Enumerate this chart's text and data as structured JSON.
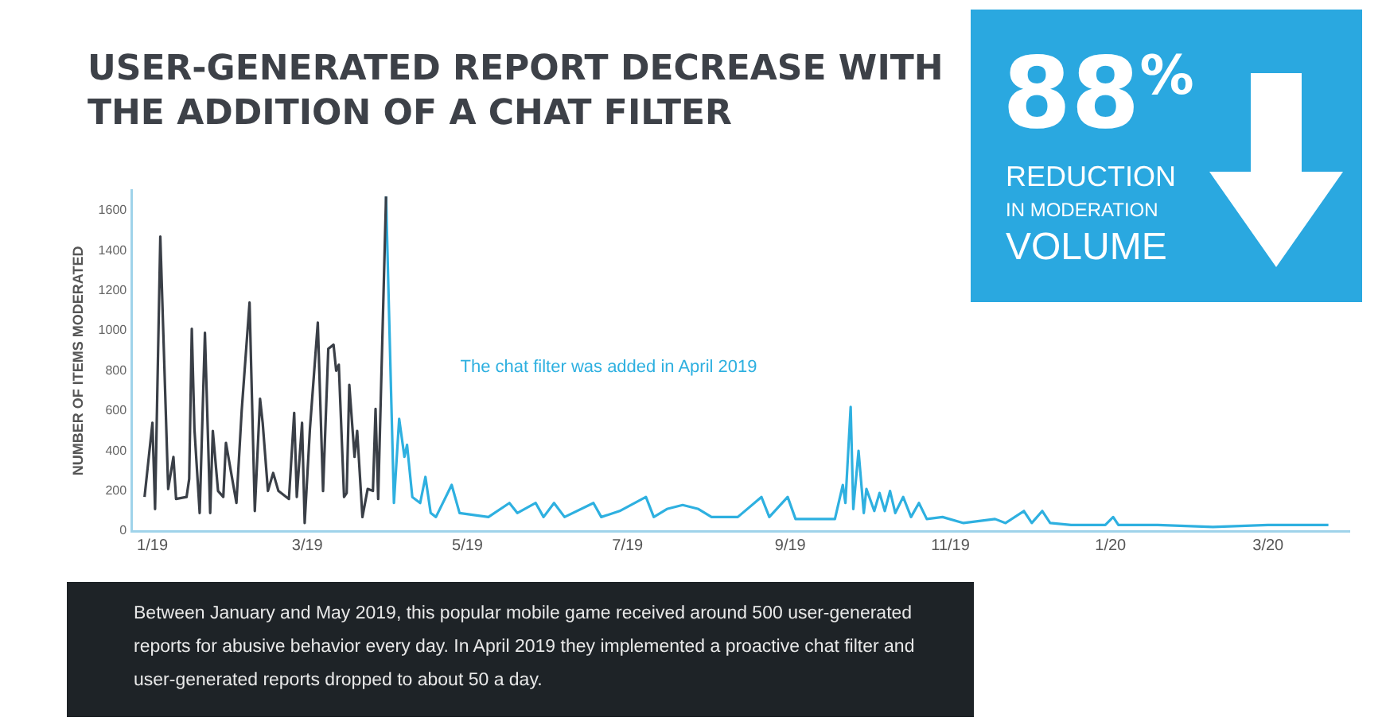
{
  "chart_data": {
    "type": "line",
    "title": "USER-GENERATED REPORT DECREASE WITH THE ADDITION OF A CHAT FILTER",
    "ylabel": "NUMBER OF ITEMS MODERATED",
    "annotations": [
      "The chat filter was added in April 2019",
      "88%",
      "REDUCTION",
      "IN MODERATION",
      "VOLUME",
      "Between January and May 2019, this popular mobile game received around 500 user-generated reports for abusive behavior every day. In April 2019 they implemented a proactive chat filter and user-generated reports dropped to about 50 a day."
    ],
    "xlim": [
      "2018-12-24",
      "2020-04-01"
    ],
    "xticks": [
      {
        "value": "2019-01-01",
        "label": "1/19"
      },
      {
        "value": "2019-03-01",
        "label": "3/19"
      },
      {
        "value": "2019-05-01",
        "label": "5/19"
      },
      {
        "value": "2019-07-01",
        "label": "7/19"
      },
      {
        "value": "2019-09-01",
        "label": "9/19"
      },
      {
        "value": "2019-11-01",
        "label": "11/19"
      },
      {
        "value": "2020-01-01",
        "label": "1/20"
      },
      {
        "value": "2020-03-01",
        "label": "3/20"
      }
    ],
    "ylim": [
      0,
      1700
    ],
    "yticks": [
      0,
      200,
      400,
      600,
      800,
      1000,
      1200,
      1400,
      1600
    ],
    "grid": false,
    "legend": false,
    "marker": "none",
    "line_style": "solid",
    "series": [
      {
        "color": "#3a3f47",
        "x": [
          "2018-12-29",
          "2019-01-01",
          "2019-01-02",
          "2019-01-04",
          "2019-01-07",
          "2019-01-09",
          "2019-01-10",
          "2019-01-14",
          "2019-01-15",
          "2019-01-16",
          "2019-01-17",
          "2019-01-19",
          "2019-01-21",
          "2019-01-23",
          "2019-01-24",
          "2019-01-26",
          "2019-01-28",
          "2019-01-29",
          "2019-02-02",
          "2019-02-04",
          "2019-02-07",
          "2019-02-09",
          "2019-02-11",
          "2019-02-12",
          "2019-02-14",
          "2019-02-16",
          "2019-02-18",
          "2019-02-22",
          "2019-02-24",
          "2019-02-25",
          "2019-02-27",
          "2019-02-28",
          "2019-03-02",
          "2019-03-05",
          "2019-03-07",
          "2019-03-09",
          "2019-03-11",
          "2019-03-12",
          "2019-03-13",
          "2019-03-15",
          "2019-03-16",
          "2019-03-17",
          "2019-03-19",
          "2019-03-20",
          "2019-03-22",
          "2019-03-24",
          "2019-03-26",
          "2019-03-27",
          "2019-03-28",
          "2019-03-31"
        ],
        "values": [
          170,
          540,
          110,
          1470,
          210,
          370,
          160,
          170,
          260,
          1010,
          510,
          90,
          990,
          90,
          500,
          200,
          170,
          440,
          140,
          600,
          1140,
          100,
          660,
          540,
          200,
          290,
          200,
          160,
          590,
          170,
          540,
          40,
          510,
          1040,
          200,
          910,
          930,
          800,
          830,
          170,
          190,
          730,
          370,
          500,
          70,
          210,
          200,
          610,
          160,
          1670
        ]
      },
      {
        "color": "#2eb0e0",
        "x": [
          "2019-03-31",
          "2019-04-03",
          "2019-04-05",
          "2019-04-07",
          "2019-04-08",
          "2019-04-10",
          "2019-04-13",
          "2019-04-15",
          "2019-04-17",
          "2019-04-19",
          "2019-04-25",
          "2019-04-28",
          "2019-05-09",
          "2019-05-17",
          "2019-05-20",
          "2019-05-27",
          "2019-05-30",
          "2019-06-03",
          "2019-06-07",
          "2019-06-18",
          "2019-06-21",
          "2019-06-28",
          "2019-07-08",
          "2019-07-11",
          "2019-07-16",
          "2019-07-22",
          "2019-07-28",
          "2019-08-02",
          "2019-08-12",
          "2019-08-21",
          "2019-08-24",
          "2019-08-31",
          "2019-09-03",
          "2019-09-09",
          "2019-09-18",
          "2019-09-21",
          "2019-09-22",
          "2019-09-24",
          "2019-09-25",
          "2019-09-27",
          "2019-09-29",
          "2019-09-30",
          "2019-10-03",
          "2019-10-05",
          "2019-10-07",
          "2019-10-09",
          "2019-10-11",
          "2019-10-14",
          "2019-10-17",
          "2019-10-20",
          "2019-10-23",
          "2019-10-29",
          "2019-11-06",
          "2019-11-18",
          "2019-11-22",
          "2019-11-29",
          "2019-12-02",
          "2019-12-06",
          "2019-12-09",
          "2019-12-17",
          "2019-12-30",
          "2020-01-02",
          "2020-01-04",
          "2020-01-19",
          "2020-02-09",
          "2020-03-01",
          "2020-03-24"
        ],
        "values": [
          1670,
          140,
          560,
          370,
          430,
          170,
          140,
          270,
          90,
          70,
          230,
          90,
          70,
          140,
          90,
          140,
          70,
          140,
          70,
          140,
          70,
          100,
          170,
          70,
          110,
          130,
          110,
          70,
          70,
          170,
          70,
          170,
          60,
          60,
          60,
          230,
          140,
          620,
          110,
          400,
          90,
          210,
          100,
          190,
          100,
          200,
          90,
          170,
          70,
          140,
          60,
          70,
          40,
          60,
          40,
          100,
          40,
          100,
          40,
          30,
          30,
          70,
          30,
          30,
          20,
          30,
          30
        ]
      }
    ]
  }
}
